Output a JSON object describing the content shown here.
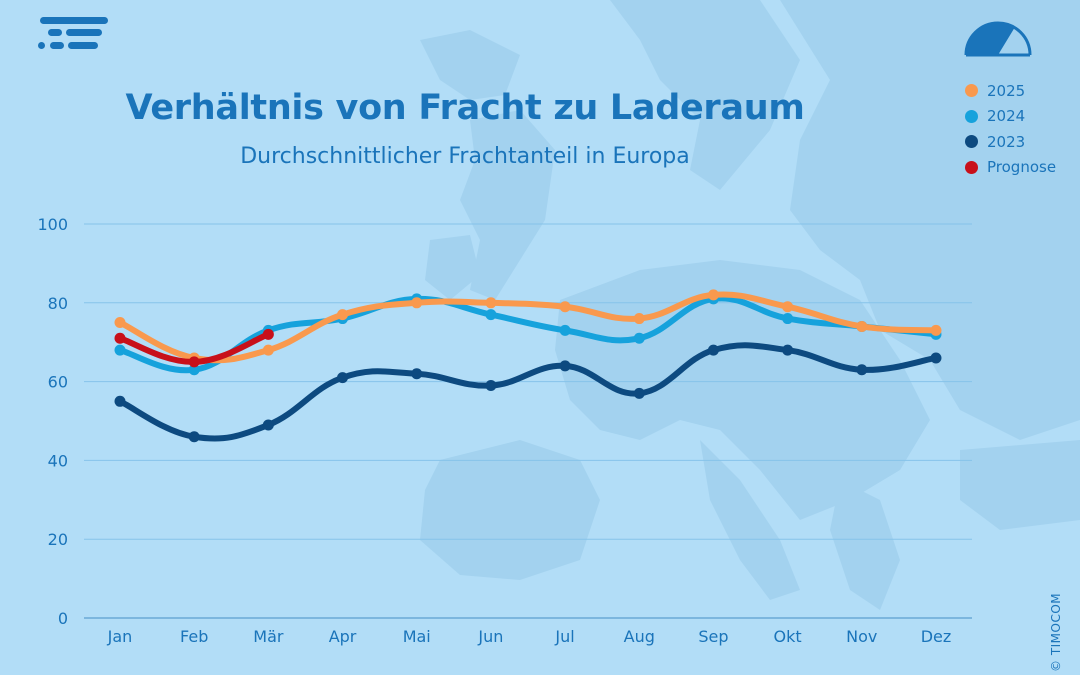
{
  "brand": {
    "copyright": "© TIMOCOM",
    "primary_color": "#1a74ba"
  },
  "chart_data": {
    "type": "line",
    "title": "Verhältnis von Fracht zu Laderaum",
    "subtitle": "Durchschnittlicher Frachtanteil in Europa",
    "xlabel": "",
    "ylabel": "",
    "ylim": [
      0,
      100
    ],
    "yticks": [
      0,
      20,
      40,
      60,
      80,
      100
    ],
    "grid": true,
    "legend_position": "top-right",
    "categories": [
      "Jan",
      "Feb",
      "Mär",
      "Apr",
      "Mai",
      "Jun",
      "Jul",
      "Aug",
      "Sep",
      "Okt",
      "Nov",
      "Dez"
    ],
    "series": [
      {
        "name": "2023",
        "color": "#0d4a80",
        "values": [
          55,
          46,
          49,
          61,
          62,
          59,
          64,
          57,
          68,
          68,
          63,
          66
        ]
      },
      {
        "name": "2024",
        "color": "#16a2dc",
        "values": [
          68,
          63,
          73,
          76,
          81,
          77,
          73,
          71,
          81,
          76,
          74,
          72
        ]
      },
      {
        "name": "2025",
        "color": "#f9994e",
        "values": [
          75,
          66,
          68,
          77,
          80,
          80,
          79,
          76,
          82,
          79,
          74,
          73
        ]
      },
      {
        "name": "Prognose",
        "color": "#c8101a",
        "values": [
          71,
          65,
          72,
          null,
          null,
          null,
          null,
          null,
          null,
          null,
          null,
          null
        ]
      }
    ],
    "legend_order": [
      "2025",
      "2024",
      "2023",
      "Prognose"
    ]
  }
}
